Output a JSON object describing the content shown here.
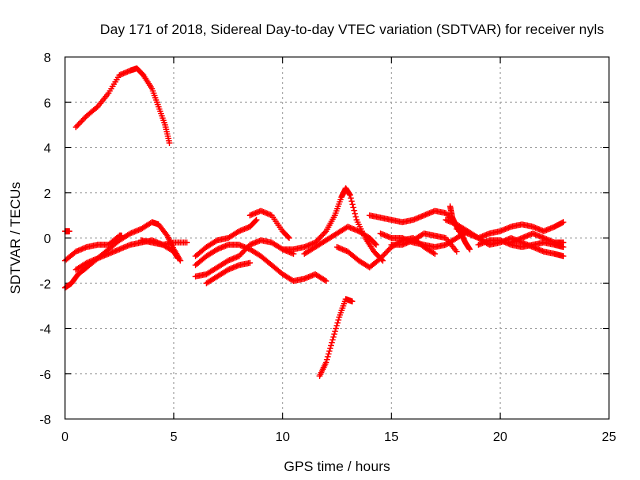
{
  "chart_data": {
    "type": "scatter",
    "title": "Day 171 of 2018, Sidereal Day-to-day VTEC variation (SDTVAR) for receiver nyls",
    "xlabel": "GPS time / hours",
    "ylabel": "SDTVAR / TECUs",
    "xlim": [
      0,
      25
    ],
    "ylim": [
      -8,
      8
    ],
    "xticks": [
      0,
      5,
      10,
      15,
      20,
      25
    ],
    "yticks": [
      -8,
      -6,
      -4,
      -2,
      0,
      2,
      4,
      6,
      8
    ],
    "grid": true,
    "marker": "+",
    "color": "#ff0000",
    "series": [
      {
        "name": "arc-1",
        "points": [
          [
            0.5,
            4.9
          ],
          [
            1.0,
            5.4
          ],
          [
            1.5,
            5.8
          ],
          [
            2.0,
            6.4
          ],
          [
            2.5,
            7.2
          ],
          [
            3.0,
            7.4
          ],
          [
            3.3,
            7.5
          ],
          [
            3.6,
            7.2
          ],
          [
            4.0,
            6.6
          ],
          [
            4.3,
            5.8
          ],
          [
            4.6,
            5.0
          ],
          [
            4.8,
            4.2
          ]
        ]
      },
      {
        "name": "arc-2",
        "points": [
          [
            0.0,
            -2.2
          ],
          [
            0.3,
            -2.0
          ],
          [
            0.6,
            -1.6
          ],
          [
            1.0,
            -1.3
          ],
          [
            1.5,
            -0.9
          ],
          [
            2.0,
            -0.5
          ],
          [
            2.5,
            -0.1
          ],
          [
            3.0,
            0.2
          ],
          [
            3.5,
            0.4
          ],
          [
            4.0,
            0.7
          ],
          [
            4.3,
            0.6
          ],
          [
            4.7,
            0.1
          ],
          [
            5.0,
            -0.5
          ],
          [
            5.3,
            -1.0
          ]
        ]
      },
      {
        "name": "arc-3",
        "points": [
          [
            0.0,
            -1.0
          ],
          [
            0.5,
            -0.6
          ],
          [
            1.0,
            -0.4
          ],
          [
            1.5,
            -0.3
          ],
          [
            2.0,
            -0.3
          ],
          [
            2.5,
            0.1
          ],
          [
            2.6,
            0.1
          ]
        ]
      },
      {
        "name": "arc-4",
        "points": [
          [
            0.5,
            -1.4
          ],
          [
            1.0,
            -1.1
          ],
          [
            1.5,
            -0.9
          ],
          [
            2.0,
            -0.7
          ],
          [
            2.5,
            -0.5
          ],
          [
            3.0,
            -0.3
          ],
          [
            3.5,
            -0.2
          ],
          [
            4.0,
            -0.1
          ],
          [
            4.5,
            -0.3
          ],
          [
            5.0,
            -0.6
          ],
          [
            5.2,
            -0.9
          ]
        ]
      },
      {
        "name": "arc-5",
        "points": [
          [
            3.5,
            -0.1
          ],
          [
            4.0,
            -0.2
          ],
          [
            4.5,
            -0.3
          ],
          [
            5.0,
            -0.2
          ],
          [
            5.6,
            -0.2
          ]
        ]
      },
      {
        "name": "arc-6",
        "points": [
          [
            0.0,
            0.3
          ],
          [
            0.2,
            0.3
          ]
        ]
      },
      {
        "name": "arc-7",
        "points": [
          [
            6.0,
            -1.2
          ],
          [
            6.5,
            -0.8
          ],
          [
            7.0,
            -0.5
          ],
          [
            7.5,
            -0.3
          ],
          [
            8.0,
            -0.3
          ],
          [
            8.5,
            -0.5
          ],
          [
            9.0,
            -0.8
          ],
          [
            9.5,
            -1.2
          ],
          [
            10.0,
            -1.6
          ],
          [
            10.5,
            -1.9
          ],
          [
            11.0,
            -1.8
          ],
          [
            11.5,
            -1.6
          ],
          [
            12.0,
            -1.9
          ]
        ]
      },
      {
        "name": "arc-8",
        "points": [
          [
            6.0,
            -0.8
          ],
          [
            6.5,
            -0.4
          ],
          [
            7.0,
            -0.1
          ],
          [
            7.5,
            0.0
          ],
          [
            8.0,
            0.3
          ],
          [
            8.5,
            0.5
          ],
          [
            8.8,
            0.8
          ]
        ]
      },
      {
        "name": "arc-9",
        "points": [
          [
            6.0,
            -1.7
          ],
          [
            6.5,
            -1.6
          ],
          [
            7.0,
            -1.3
          ],
          [
            7.5,
            -1.0
          ],
          [
            8.0,
            -0.8
          ],
          [
            8.5,
            -0.3
          ],
          [
            9.0,
            -0.1
          ],
          [
            9.5,
            -0.2
          ],
          [
            10.0,
            -0.5
          ],
          [
            10.5,
            -0.7
          ]
        ]
      },
      {
        "name": "arc-10",
        "points": [
          [
            6.5,
            -2.0
          ],
          [
            7.0,
            -1.7
          ],
          [
            7.5,
            -1.4
          ],
          [
            8.0,
            -1.2
          ],
          [
            8.5,
            -1.1
          ]
        ]
      },
      {
        "name": "arc-11",
        "points": [
          [
            8.5,
            1.0
          ],
          [
            9.0,
            1.2
          ],
          [
            9.5,
            1.0
          ],
          [
            10.0,
            0.3
          ],
          [
            10.3,
            0.0
          ]
        ]
      },
      {
        "name": "arc-12",
        "points": [
          [
            10.0,
            -0.5
          ],
          [
            10.5,
            -0.5
          ],
          [
            11.0,
            -0.4
          ],
          [
            11.5,
            -0.2
          ],
          [
            12.0,
            0.3
          ],
          [
            12.4,
            1.0
          ],
          [
            12.7,
            1.8
          ],
          [
            12.9,
            2.2
          ],
          [
            13.1,
            1.9
          ],
          [
            13.4,
            0.8
          ],
          [
            13.8,
            0.0
          ],
          [
            14.2,
            -0.6
          ],
          [
            14.6,
            -1.0
          ]
        ]
      },
      {
        "name": "arc-13",
        "points": [
          [
            11.0,
            -0.7
          ],
          [
            11.5,
            -0.4
          ],
          [
            12.0,
            -0.1
          ],
          [
            12.5,
            0.2
          ],
          [
            13.0,
            0.5
          ],
          [
            13.5,
            0.3
          ],
          [
            14.0,
            0.0
          ],
          [
            14.3,
            -0.3
          ]
        ]
      },
      {
        "name": "arc-14",
        "points": [
          [
            11.7,
            -6.1
          ],
          [
            12.0,
            -5.5
          ],
          [
            12.3,
            -4.5
          ],
          [
            12.6,
            -3.5
          ],
          [
            12.9,
            -2.7
          ],
          [
            13.2,
            -2.8
          ]
        ]
      },
      {
        "name": "arc-15",
        "points": [
          [
            12.5,
            -0.4
          ],
          [
            13.0,
            -0.6
          ],
          [
            13.5,
            -1.0
          ],
          [
            14.0,
            -1.3
          ],
          [
            14.5,
            -0.9
          ],
          [
            15.0,
            -0.4
          ],
          [
            15.5,
            -0.1
          ],
          [
            16.0,
            0.0
          ],
          [
            16.5,
            -0.4
          ],
          [
            17.0,
            -0.7
          ]
        ]
      },
      {
        "name": "arc-16",
        "points": [
          [
            14.0,
            1.0
          ],
          [
            14.5,
            0.9
          ],
          [
            15.0,
            0.8
          ],
          [
            15.5,
            0.7
          ],
          [
            16.0,
            0.8
          ],
          [
            16.5,
            1.0
          ],
          [
            17.0,
            1.2
          ],
          [
            17.5,
            1.1
          ],
          [
            18.0,
            0.6
          ]
        ]
      },
      {
        "name": "arc-17",
        "points": [
          [
            14.5,
            0.2
          ],
          [
            15.0,
            0.0
          ],
          [
            15.5,
            0.0
          ],
          [
            16.0,
            -0.2
          ],
          [
            16.5,
            -0.3
          ],
          [
            17.0,
            -0.4
          ],
          [
            17.5,
            -0.3
          ],
          [
            18.0,
            0.0
          ],
          [
            18.5,
            0.3
          ]
        ]
      },
      {
        "name": "arc-18",
        "points": [
          [
            15.0,
            -0.3
          ],
          [
            15.5,
            -0.3
          ],
          [
            16.0,
            -0.1
          ],
          [
            16.5,
            0.2
          ],
          [
            17.0,
            0.1
          ],
          [
            17.5,
            0.0
          ],
          [
            18.0,
            -0.6
          ]
        ]
      },
      {
        "name": "arc-19",
        "points": [
          [
            17.5,
            0.8
          ],
          [
            18.0,
            0.6
          ],
          [
            18.5,
            0.3
          ],
          [
            19.0,
            0.0
          ],
          [
            19.5,
            -0.3
          ],
          [
            20.0,
            -0.2
          ],
          [
            20.5,
            0.0
          ],
          [
            21.0,
            -0.2
          ],
          [
            21.5,
            -0.4
          ],
          [
            22.0,
            -0.6
          ],
          [
            22.5,
            -0.7
          ],
          [
            22.9,
            -0.8
          ]
        ]
      },
      {
        "name": "arc-20",
        "points": [
          [
            18.0,
            0.4
          ],
          [
            18.5,
            0.2
          ],
          [
            19.0,
            0.0
          ],
          [
            19.5,
            0.2
          ],
          [
            20.0,
            0.3
          ],
          [
            20.5,
            0.5
          ],
          [
            21.0,
            0.6
          ],
          [
            21.5,
            0.5
          ],
          [
            22.0,
            0.3
          ],
          [
            22.5,
            0.5
          ],
          [
            22.9,
            0.7
          ]
        ]
      },
      {
        "name": "arc-21",
        "points": [
          [
            19.0,
            -0.3
          ],
          [
            19.5,
            -0.1
          ],
          [
            20.0,
            -0.1
          ],
          [
            20.5,
            -0.3
          ],
          [
            21.0,
            -0.4
          ],
          [
            21.5,
            -0.3
          ],
          [
            22.0,
            -0.2
          ],
          [
            22.5,
            -0.3
          ],
          [
            22.9,
            -0.4
          ]
        ]
      },
      {
        "name": "arc-22",
        "points": [
          [
            20.5,
            -0.2
          ],
          [
            21.0,
            0.0
          ],
          [
            21.5,
            0.2
          ],
          [
            22.0,
            0.0
          ],
          [
            22.5,
            -0.2
          ],
          [
            22.9,
            -0.2
          ]
        ]
      },
      {
        "name": "arc-23",
        "points": [
          [
            17.7,
            1.4
          ],
          [
            17.8,
            0.9
          ],
          [
            18.0,
            0.5
          ],
          [
            18.2,
            0.2
          ],
          [
            18.4,
            -0.2
          ],
          [
            18.6,
            -0.5
          ]
        ]
      }
    ]
  }
}
